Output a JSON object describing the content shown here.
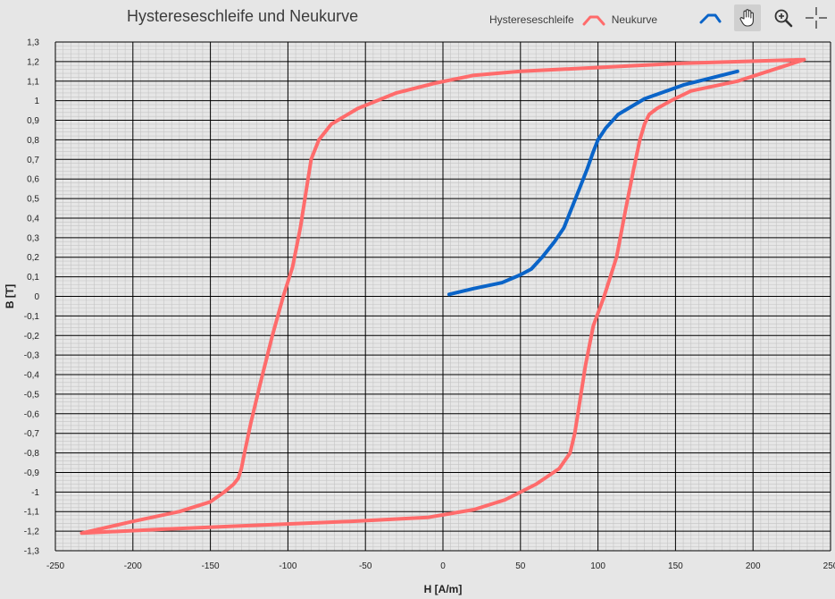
{
  "chart_data": {
    "type": "line",
    "title": "Hystereseschleife und Neukurve",
    "xlabel": "H [A/m]",
    "ylabel": "B [T]",
    "xlim": [
      -250,
      250
    ],
    "ylim": [
      -1.3,
      1.3
    ],
    "x_ticks": [
      -250,
      -200,
      -150,
      -100,
      -50,
      0,
      50,
      100,
      150,
      200,
      250
    ],
    "x_tick_labels": [
      "-250",
      "-200",
      "-150",
      "-100",
      "-50",
      "0",
      "50",
      "100",
      "150",
      "200",
      "250"
    ],
    "y_ticks": [
      -1.3,
      -1.2,
      -1.1,
      -1.0,
      -0.9,
      -0.8,
      -0.7,
      -0.6,
      -0.5,
      -0.4,
      -0.3,
      -0.2,
      -0.1,
      0,
      0.1,
      0.2,
      0.3,
      0.4,
      0.5,
      0.6,
      0.7,
      0.8,
      0.9,
      1.0,
      1.1,
      1.2,
      1.3
    ],
    "y_tick_labels": [
      "-1,3",
      "-1,2",
      "-1,1",
      "-1",
      "-0,9",
      "-0,8",
      "-0,7",
      "-0,6",
      "-0,5",
      "-0,4",
      "-0,3",
      "-0,2",
      "-0,1",
      "0",
      "0,1",
      "0,2",
      "0,3",
      "0,4",
      "0,5",
      "0,6",
      "0,7",
      "0,8",
      "0,9",
      "1",
      "1,1",
      "1,2",
      "1,3"
    ],
    "grid": true,
    "legend_position": "top-right",
    "series": [
      {
        "name": "Hystereseschleife",
        "color": "#ff6b6b",
        "x": [
          233,
          150,
          100,
          50,
          20,
          -5,
          -30,
          -55,
          -72,
          -80,
          -85,
          -88,
          -92,
          -97,
          -103,
          -110,
          -118,
          -124,
          -128,
          -130,
          -132,
          -135,
          -141,
          -150,
          -170,
          -200,
          -233,
          -180,
          -120,
          -60,
          -10,
          20,
          40,
          60,
          75,
          82,
          85,
          88,
          92,
          97,
          104,
          112,
          118,
          123,
          127,
          130,
          133,
          138,
          147,
          160,
          190,
          233
        ],
        "y": [
          1.21,
          1.19,
          1.17,
          1.15,
          1.13,
          1.09,
          1.04,
          0.96,
          0.88,
          0.8,
          0.7,
          0.55,
          0.35,
          0.15,
          0.0,
          -0.2,
          -0.45,
          -0.65,
          -0.8,
          -0.88,
          -0.93,
          -0.96,
          -1.0,
          -1.05,
          -1.1,
          -1.15,
          -1.21,
          -1.19,
          -1.17,
          -1.15,
          -1.13,
          -1.09,
          -1.04,
          -0.96,
          -0.88,
          -0.8,
          -0.7,
          -0.55,
          -0.35,
          -0.15,
          0.0,
          0.2,
          0.45,
          0.65,
          0.8,
          0.88,
          0.93,
          0.96,
          1.0,
          1.05,
          1.1,
          1.21
        ]
      },
      {
        "name": "Neukurve",
        "color": "#0a64c8",
        "x": [
          4,
          20,
          38,
          50,
          57,
          64,
          72,
          78,
          83,
          88,
          93,
          97,
          100,
          105,
          113,
          130,
          155,
          190
        ],
        "y": [
          0.01,
          0.04,
          0.07,
          0.11,
          0.14,
          0.2,
          0.28,
          0.35,
          0.45,
          0.55,
          0.65,
          0.74,
          0.8,
          0.86,
          0.93,
          1.01,
          1.08,
          1.15
        ]
      }
    ]
  },
  "legend": {
    "hysteresis_label": "Hystereseschleife",
    "virgin_label": "Neukurve"
  },
  "toolbar": {
    "tools": [
      "line-tool-icon",
      "pan-hand-icon",
      "zoom-in-icon",
      "crosshair-icon"
    ],
    "active_tool": "pan-hand-icon"
  }
}
